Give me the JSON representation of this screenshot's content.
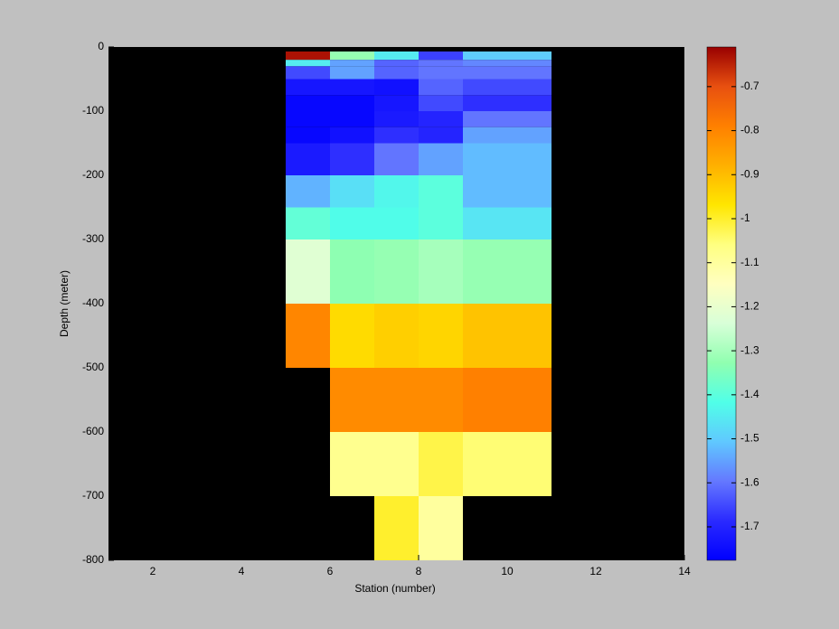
{
  "chart_data": {
    "type": "heatmap",
    "x_label": "Station (number)",
    "y_label": "Depth (meter)",
    "x_edges": [
      5,
      6,
      7,
      8,
      9,
      11
    ],
    "y_edges": [
      -7,
      -20,
      -30,
      -50,
      -75,
      -100,
      -125,
      -150,
      -200,
      -250,
      -300,
      -400,
      -500,
      -600,
      -700,
      -800
    ],
    "values": [
      [
        -0.63,
        -1.32,
        -1.45,
        -1.66,
        -1.5
      ],
      [
        -1.45,
        -1.55,
        -1.62,
        -1.6,
        -1.58
      ],
      [
        -1.65,
        -1.55,
        -1.62,
        -1.6,
        -1.6
      ],
      [
        -1.73,
        -1.73,
        -1.74,
        -1.62,
        -1.65
      ],
      [
        -1.76,
        -1.76,
        -1.73,
        -1.65,
        -1.68
      ],
      [
        -1.76,
        -1.76,
        -1.72,
        -1.7,
        -1.6
      ],
      [
        -1.76,
        -1.74,
        -1.68,
        -1.7,
        -1.55
      ],
      [
        -1.72,
        -1.68,
        -1.6,
        -1.55,
        -1.52
      ],
      [
        -1.53,
        -1.47,
        -1.43,
        -1.4,
        -1.52
      ],
      [
        -1.39,
        -1.42,
        -1.42,
        -1.4,
        -1.46
      ],
      [
        -1.22,
        -1.33,
        -1.32,
        -1.3,
        -1.32
      ],
      [
        -0.8,
        -0.95,
        -0.93,
        -0.94,
        -0.91
      ],
      [
        null,
        -0.81,
        -0.81,
        -0.81,
        -0.79
      ],
      [
        null,
        -1.08,
        -1.08,
        -1.02,
        -1.05
      ],
      [
        null,
        null,
        -1.0,
        -1.1,
        null
      ]
    ],
    "xlim": [
      1,
      14
    ],
    "xticks": [
      2,
      4,
      6,
      8,
      10,
      12,
      14
    ],
    "ylim": [
      -800,
      0
    ],
    "yticks": [
      -800,
      -700,
      -600,
      -500,
      -400,
      -300,
      -200,
      -100,
      0
    ],
    "clim": [
      -1.776,
      -0.61
    ],
    "cticks": [
      -1.7,
      -1.6,
      -1.5,
      -1.4,
      -1.3,
      -1.2,
      -1.1,
      -1,
      -0.9,
      -0.8,
      -0.7
    ],
    "colormap": [
      "#0000ff",
      "#2a2aff",
      "#6478ff",
      "#60c8ff",
      "#50ffe8",
      "#90ffb0",
      "#d8ffd8",
      "#ffffc0",
      "#ffff80",
      "#ffe600",
      "#ffb000",
      "#ff8000",
      "#e85010",
      "#990000"
    ],
    "background_color": "#000000"
  }
}
